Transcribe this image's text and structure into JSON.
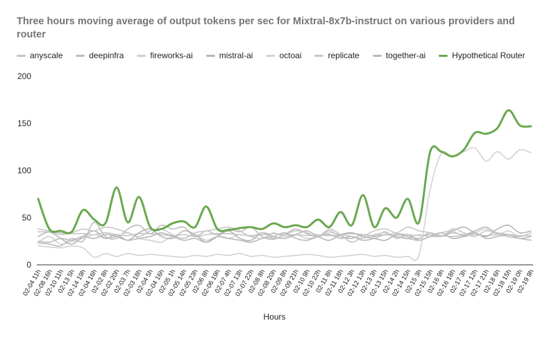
{
  "chart_data": {
    "type": "line",
    "title": "Three hours moving average of output tokens per sec for Mixtral-8x7b-instruct on various providers and router",
    "xlabel": "Hours",
    "ylabel": "",
    "ylim": [
      0,
      200
    ],
    "yticks": [
      0,
      50,
      100,
      150,
      200
    ],
    "grid": false,
    "legend_position": "top",
    "categories": [
      "02-04 11h",
      "02-08 16h",
      "02-10 11h",
      "02-13 5h",
      "02-14 19h",
      "02-04 16h",
      "02-02 8h",
      "02-02 20h",
      "02-03 7h",
      "02-03 18h",
      "02-04 5h",
      "02-04 16h",
      "02-05 1h",
      "02-05 14h",
      "02-05 23h",
      "02-06 8h",
      "02-06 19h",
      "02-07 4h",
      "02-07 13h",
      "02-07 22h",
      "02-08 8h",
      "02-08 20h",
      "02-09 8h",
      "02-09 21h",
      "02-10 9h",
      "02-10 22h",
      "02-11 8h",
      "02-11 18h",
      "02-12 3h",
      "02-12 13h",
      "02-13 3h",
      "02-13 15h",
      "02-14 2h",
      "02-14 15h",
      "02-15 3h",
      "02-15 15h",
      "02-16 9h",
      "02-16 18h",
      "02-17 3h",
      "02-17 12h",
      "02-17 21h",
      "02-18 6h",
      "02-18 15h",
      "02-19 0h",
      "02-19 9h"
    ],
    "series": [
      {
        "name": "anyscale",
        "color": "#c4c4c4",
        "values": [
          35,
          35,
          34,
          33,
          33,
          32,
          34,
          32,
          31,
          33,
          33,
          32,
          31,
          32,
          30,
          32,
          33,
          33,
          32,
          31,
          32,
          33,
          32,
          32,
          31,
          32,
          31,
          32,
          33,
          32,
          31,
          32,
          33,
          32,
          31,
          32,
          31,
          30,
          31,
          32,
          31,
          32,
          32,
          31,
          31
        ]
      },
      {
        "name": "deepinfra",
        "color": "#bdbdbd",
        "values": [
          23,
          22,
          20,
          28,
          25,
          45,
          30,
          28,
          38,
          42,
          33,
          42,
          38,
          40,
          30,
          36,
          32,
          38,
          35,
          40,
          30,
          27,
          32,
          38,
          33,
          30,
          36,
          30,
          28,
          32,
          30,
          35,
          28,
          32,
          26,
          30,
          30,
          34,
          32,
          36,
          40,
          33,
          30,
          28,
          26
        ]
      },
      {
        "name": "fireworks-ai",
        "color": "#cfcfcf",
        "values": [
          24,
          30,
          22,
          25,
          28,
          32,
          28,
          30,
          34,
          28,
          26,
          24,
          30,
          28,
          32,
          26,
          30,
          28,
          32,
          30,
          28,
          34,
          30,
          32,
          28,
          30,
          34,
          32,
          30,
          28,
          32,
          34,
          30,
          28,
          32,
          30,
          34,
          36,
          30,
          34,
          38,
          32,
          36,
          30,
          34
        ]
      },
      {
        "name": "mistral-ai",
        "color": "#b5b5b5",
        "values": [
          30,
          35,
          28,
          22,
          30,
          36,
          28,
          32,
          26,
          34,
          38,
          30,
          28,
          36,
          32,
          24,
          30,
          36,
          28,
          26,
          34,
          30,
          28,
          32,
          36,
          30,
          26,
          32,
          34,
          30,
          28,
          26,
          32,
          30,
          28,
          34,
          30,
          36,
          40,
          34,
          30,
          38,
          42,
          34,
          36
        ]
      },
      {
        "name": "octoai",
        "color": "#d2d2d2",
        "values": [
          20,
          19,
          18,
          20,
          18,
          8,
          12,
          9,
          12,
          10,
          11,
          10,
          9,
          8,
          10,
          9,
          11,
          10,
          12,
          9,
          10,
          8,
          9,
          10,
          11,
          10,
          8,
          9,
          10,
          11,
          9,
          10,
          8,
          9,
          10,
          80,
          118,
          115,
          120,
          124,
          110,
          120,
          112,
          122,
          119
        ]
      },
      {
        "name": "replicate",
        "color": "#c8c8c8",
        "values": [
          38,
          36,
          32,
          34,
          38,
          36,
          40,
          38,
          34,
          30,
          36,
          38,
          32,
          28,
          34,
          36,
          38,
          40,
          36,
          30,
          34,
          28,
          32,
          36,
          34,
          30,
          38,
          32,
          24,
          30,
          36,
          38,
          34,
          40,
          36,
          34,
          30,
          38,
          34,
          30,
          36,
          34,
          32,
          30,
          34
        ]
      },
      {
        "name": "together-ai",
        "color": "#b9b9b9",
        "values": [
          25,
          24,
          28,
          26,
          30,
          28,
          32,
          30,
          26,
          28,
          30,
          34,
          30,
          26,
          28,
          24,
          30,
          28,
          26,
          24,
          28,
          30,
          34,
          28,
          26,
          30,
          32,
          28,
          30,
          26,
          28,
          32,
          30,
          28,
          26,
          30,
          34,
          28,
          30,
          34,
          28,
          30,
          32,
          28,
          30
        ]
      },
      {
        "name": "Hypothetical Router",
        "color": "#6aa84f",
        "values": [
          70,
          38,
          36,
          35,
          58,
          48,
          44,
          82,
          45,
          72,
          40,
          38,
          44,
          46,
          40,
          62,
          38,
          37,
          39,
          40,
          38,
          44,
          40,
          42,
          40,
          48,
          40,
          56,
          42,
          74,
          40,
          60,
          50,
          70,
          45,
          120,
          120,
          115,
          122,
          140,
          139,
          145,
          164,
          148,
          147
        ]
      }
    ]
  }
}
